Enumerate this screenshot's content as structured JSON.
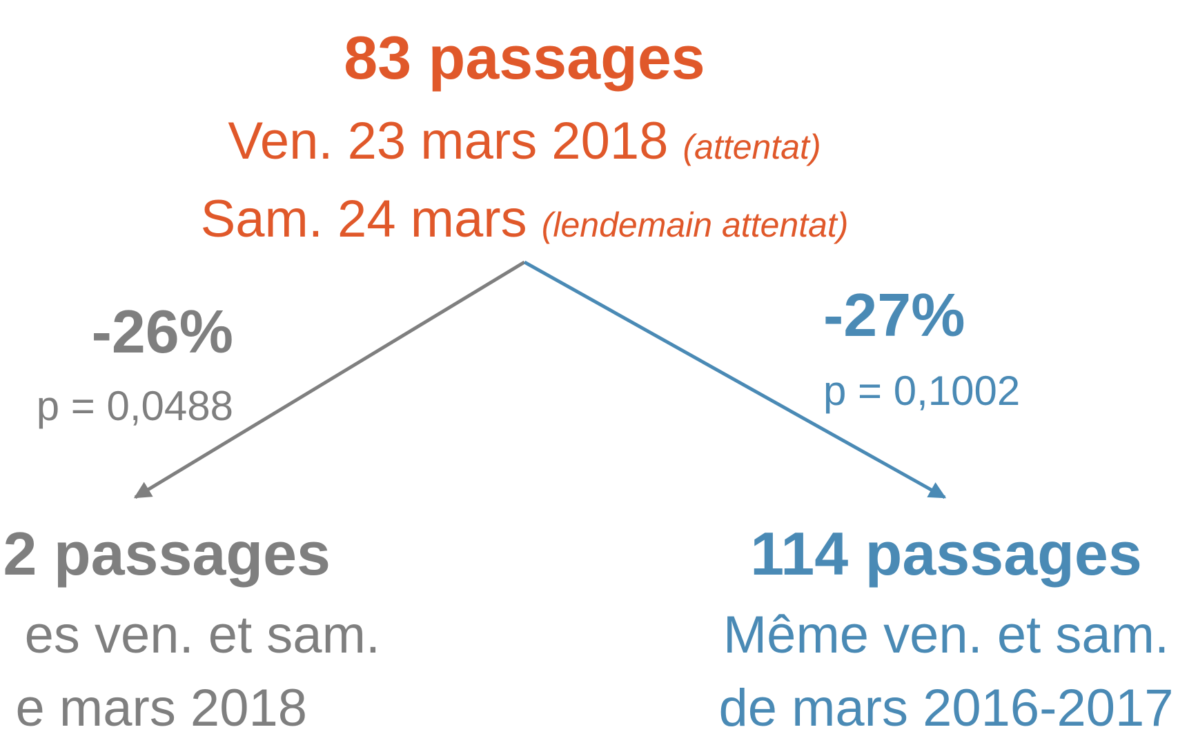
{
  "top": {
    "title": "83 passages",
    "line1": "Ven. 23 mars 2018",
    "line1_note": "(attentat)",
    "line2": "Sam. 24 mars",
    "line2_note": "(lendemain attentat)"
  },
  "left": {
    "change": "-26%",
    "p": "p = 0,0488",
    "title": "2 passages",
    "line1": "es ven. et sam.",
    "line2": "e mars 2018"
  },
  "right": {
    "change": "-27%",
    "p": "p = 0,1002",
    "title": "114 passages",
    "line1": "Même ven. et sam.",
    "line2": "de mars 2016-2017"
  }
}
